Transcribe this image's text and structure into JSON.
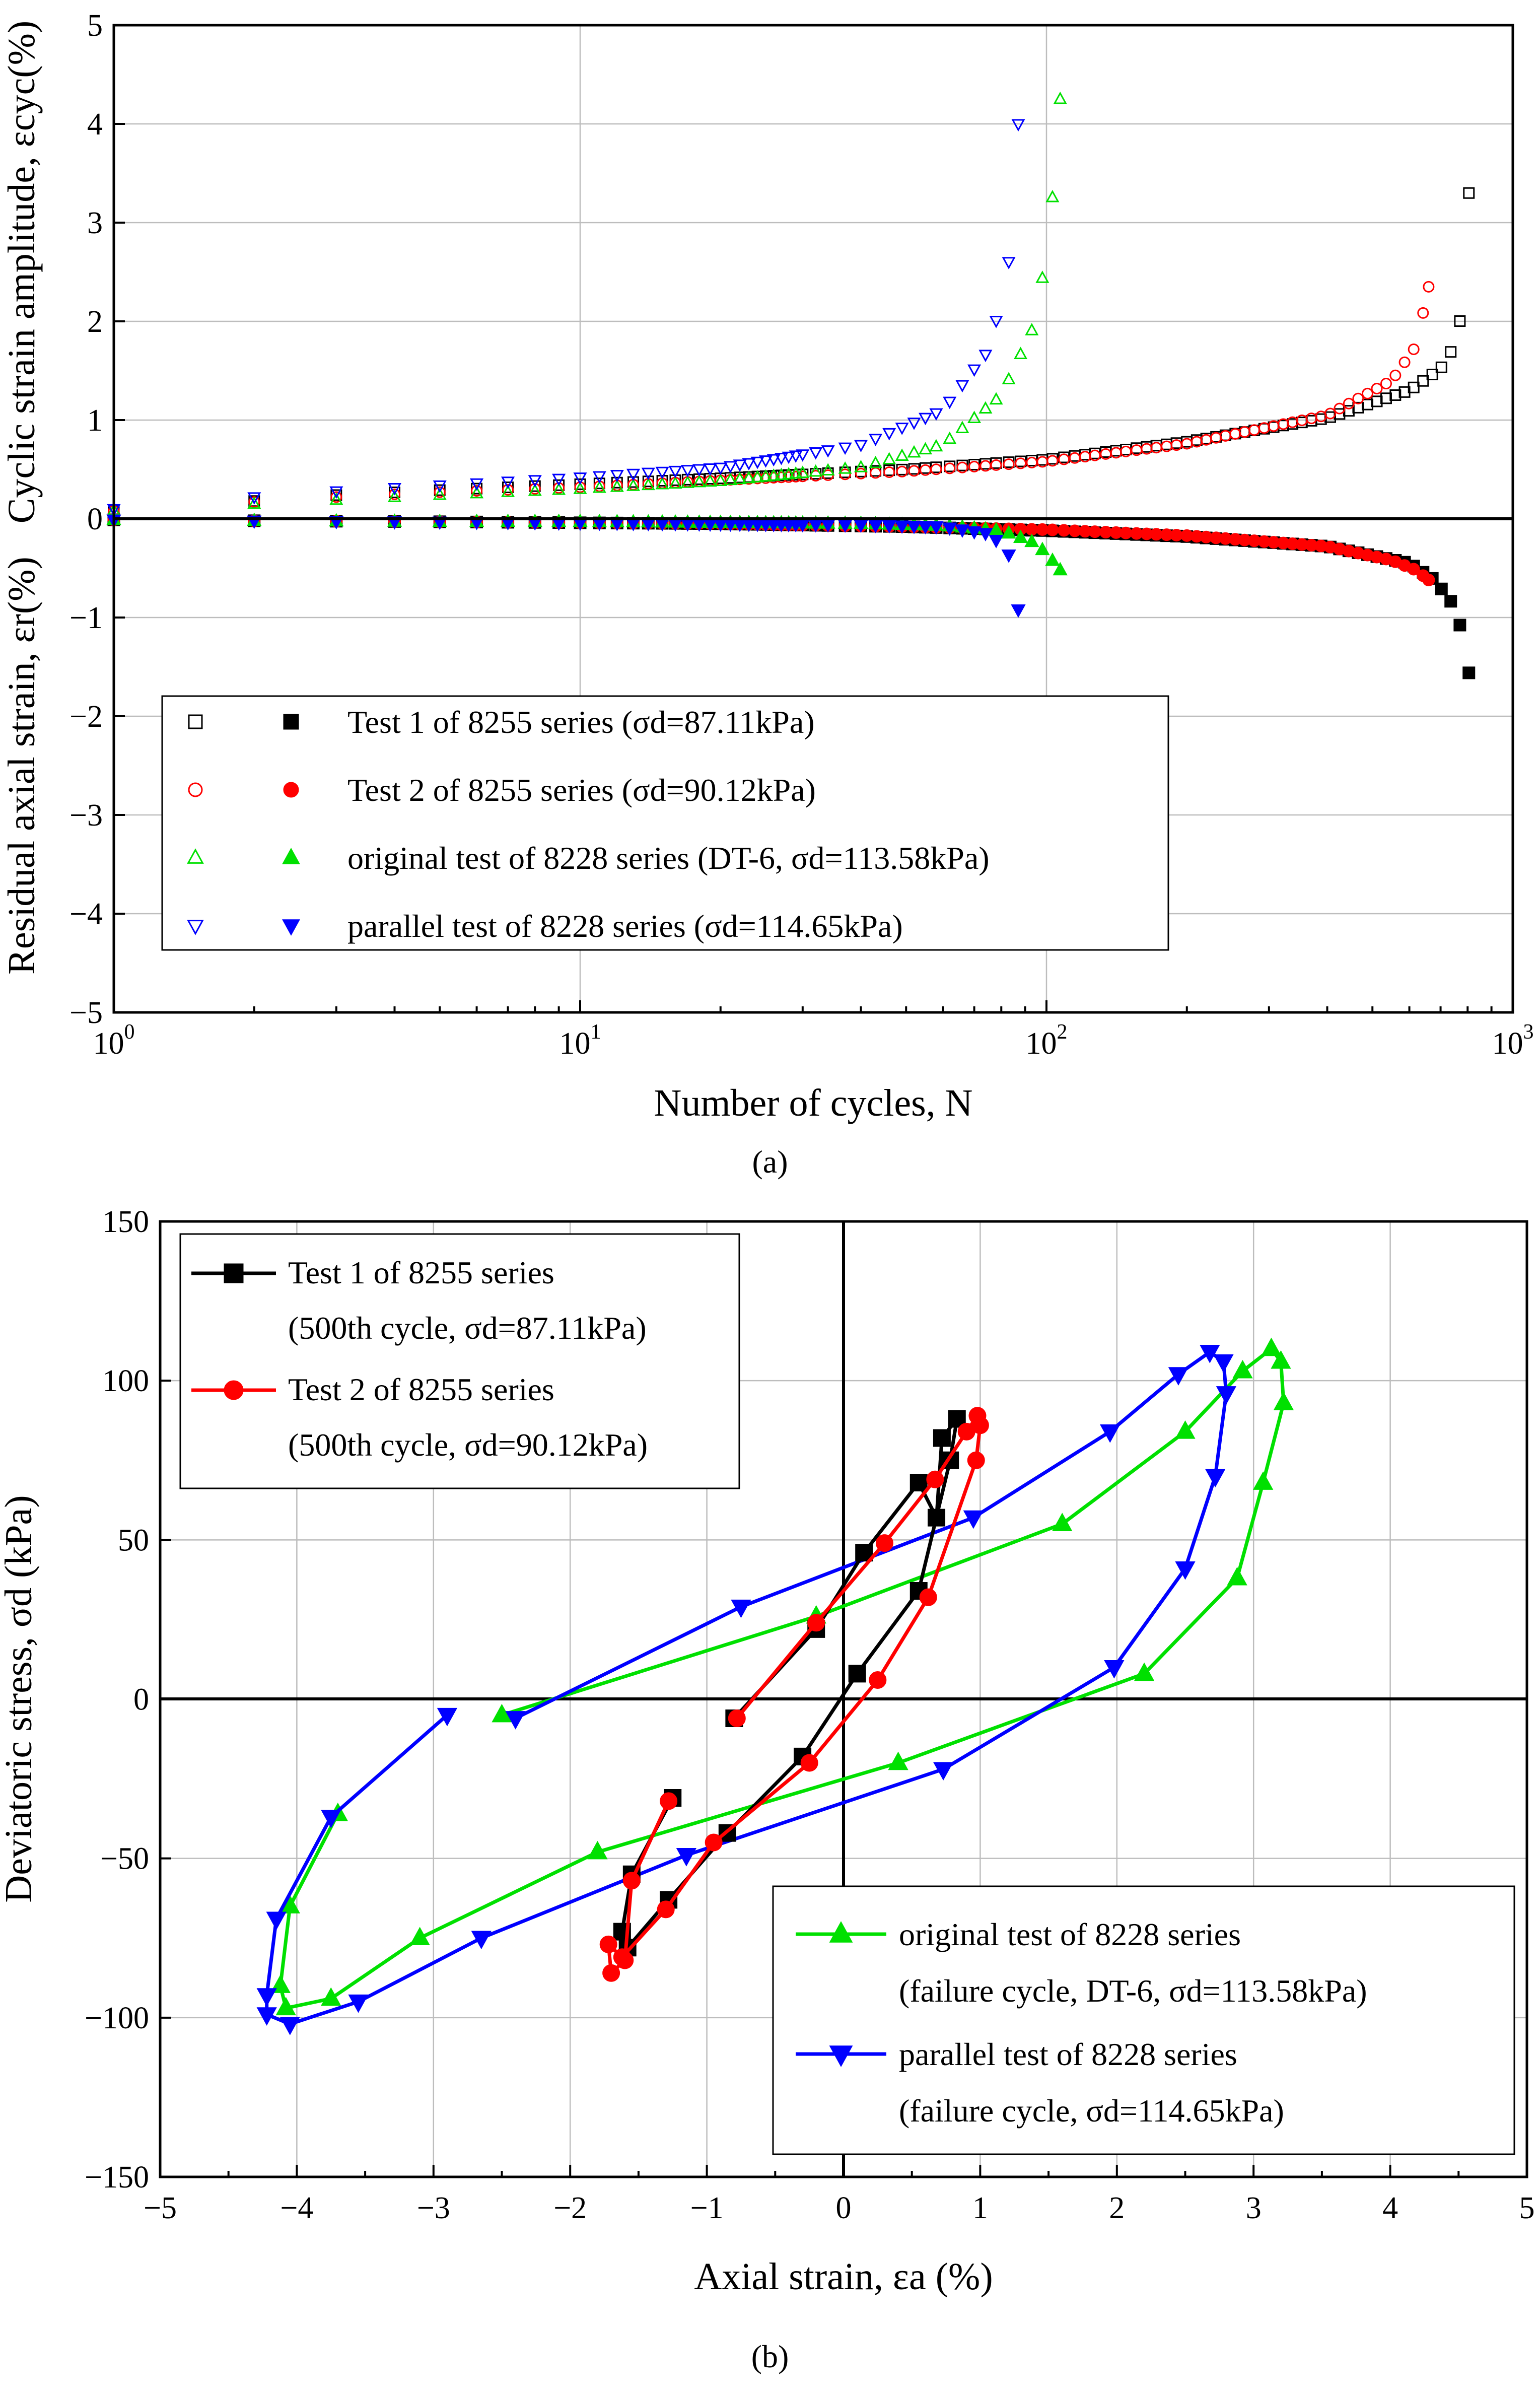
{
  "chart_data": [
    {
      "panel_label": "(a)",
      "type": "scatter",
      "xscale": "log",
      "xlim": [
        1,
        1000
      ],
      "ylim": [
        -5,
        5
      ],
      "xticks": [
        "10^0",
        "10^1",
        "10^2",
        "10^3"
      ],
      "yticks": [
        "5",
        "4",
        "3",
        "2",
        "1",
        "0",
        "−1",
        "−2",
        "−3",
        "−4",
        "−5"
      ],
      "xlabel": "Number of cycles, N",
      "ylabel_top": "Cyclic strain amplitude, εcyc(%)",
      "ylabel_bottom": "Residual axial strain, εr(%)",
      "grid": true,
      "legend_position": "bottom-left",
      "series": [
        {
          "name": "Test 1 of 8255 series (σd=87.11kPa)",
          "color": "#000000",
          "marker_open": "square",
          "marker_filled": "square",
          "N_end": 805,
          "cyclic_amplitude": [
            [
              1,
              0.08
            ],
            [
              2,
              0.18
            ],
            [
              3,
              0.24
            ],
            [
              5,
              0.29
            ],
            [
              10,
              0.35
            ],
            [
              20,
              0.41
            ],
            [
              50,
              0.5
            ],
            [
              100,
              0.6
            ],
            [
              200,
              0.78
            ],
            [
              400,
              1.02
            ],
            [
              600,
              1.3
            ],
            [
              700,
              1.52
            ],
            [
              760,
              1.8
            ],
            [
              790,
              2.4
            ],
            [
              805,
              3.3
            ]
          ],
          "residual_strain": [
            [
              1,
              -0.01
            ],
            [
              2,
              -0.02
            ],
            [
              5,
              -0.03
            ],
            [
              10,
              -0.04
            ],
            [
              20,
              -0.05
            ],
            [
              50,
              -0.08
            ],
            [
              100,
              -0.12
            ],
            [
              200,
              -0.18
            ],
            [
              400,
              -0.28
            ],
            [
              600,
              -0.45
            ],
            [
              680,
              -0.62
            ],
            [
              740,
              -0.85
            ],
            [
              780,
              -1.15
            ],
            [
              800,
              -1.45
            ],
            [
              810,
              -1.67
            ]
          ]
        },
        {
          "name": "Test 2 of 8255 series (σd=90.12kPa)",
          "color": "#ff0000",
          "marker_open": "circle",
          "marker_filled": "circle",
          "N_end": 660,
          "cyclic_amplitude": [
            [
              1,
              0.08
            ],
            [
              2,
              0.17
            ],
            [
              3,
              0.22
            ],
            [
              5,
              0.27
            ],
            [
              10,
              0.32
            ],
            [
              20,
              0.39
            ],
            [
              50,
              0.48
            ],
            [
              100,
              0.58
            ],
            [
              200,
              0.76
            ],
            [
              400,
              1.05
            ],
            [
              550,
              1.4
            ],
            [
              620,
              1.75
            ],
            [
              660,
              2.35
            ]
          ],
          "residual_strain": [
            [
              1,
              -0.01
            ],
            [
              2,
              -0.02
            ],
            [
              5,
              -0.03
            ],
            [
              10,
              -0.04
            ],
            [
              20,
              -0.05
            ],
            [
              50,
              -0.08
            ],
            [
              100,
              -0.11
            ],
            [
              200,
              -0.17
            ],
            [
              400,
              -0.28
            ],
            [
              550,
              -0.42
            ],
            [
              620,
              -0.52
            ],
            [
              660,
              -0.62
            ]
          ]
        },
        {
          "name": "original test of 8228 series (DT-6, σd=113.58kPa)",
          "color": "#00e000",
          "marker_open": "triangle-up",
          "marker_filled": "triangle-up",
          "N_end": 107,
          "cyclic_amplitude": [
            [
              1,
              0.08
            ],
            [
              2,
              0.15
            ],
            [
              3,
              0.19
            ],
            [
              5,
              0.24
            ],
            [
              10,
              0.3
            ],
            [
              20,
              0.38
            ],
            [
              40,
              0.52
            ],
            [
              60,
              0.75
            ],
            [
              80,
              1.25
            ],
            [
              95,
              2.0
            ],
            [
              102,
              3.0
            ],
            [
              107,
              4.25
            ]
          ],
          "residual_strain": [
            [
              1,
              -0.01
            ],
            [
              2,
              -0.02
            ],
            [
              5,
              -0.03
            ],
            [
              10,
              -0.03
            ],
            [
              20,
              -0.04
            ],
            [
              40,
              -0.05
            ],
            [
              60,
              -0.07
            ],
            [
              80,
              -0.12
            ],
            [
              95,
              -0.25
            ],
            [
              102,
              -0.4
            ],
            [
              107,
              -0.52
            ]
          ]
        },
        {
          "name": "parallel test of 8228 series (σd=114.65kPa)",
          "color": "#0000ff",
          "marker_open": "triangle-down",
          "marker_filled": "triangle-down",
          "N_end": 87,
          "cyclic_amplitude": [
            [
              1,
              0.1
            ],
            [
              2,
              0.22
            ],
            [
              3,
              0.28
            ],
            [
              5,
              0.34
            ],
            [
              10,
              0.42
            ],
            [
              20,
              0.52
            ],
            [
              40,
              0.75
            ],
            [
              60,
              1.1
            ],
            [
              75,
              1.7
            ],
            [
              82,
              2.4
            ],
            [
              86,
              3.2
            ],
            [
              87,
              4.0
            ]
          ],
          "residual_strain": [
            [
              1,
              -0.01
            ],
            [
              2,
              -0.02
            ],
            [
              5,
              -0.03
            ],
            [
              10,
              -0.04
            ],
            [
              20,
              -0.05
            ],
            [
              40,
              -0.06
            ],
            [
              60,
              -0.08
            ],
            [
              75,
              -0.15
            ],
            [
              82,
              -0.3
            ],
            [
              86,
              -0.55
            ],
            [
              87,
              -0.92
            ]
          ]
        }
      ]
    },
    {
      "panel_label": "(b)",
      "type": "line",
      "xlim": [
        -5,
        5
      ],
      "ylim": [
        -150,
        150
      ],
      "xticks": [
        "−5",
        "−4",
        "−3",
        "−2",
        "−1",
        "0",
        "1",
        "2",
        "3",
        "4",
        "5"
      ],
      "yticks": [
        "150",
        "100",
        "50",
        "0",
        "−50",
        "−100",
        "−150"
      ],
      "xlabel": "Axial strain, εa (%)",
      "ylabel": "Deviatoric stress, σd (kPa)",
      "grid": true,
      "legend_position": "top-left and bottom-right",
      "series": [
        {
          "name": "Test 1 of 8255 series",
          "name_line2": "(500th cycle, σd=87.11kPa)",
          "color": "#000000",
          "marker": "square",
          "x": [
            -1.25,
            -1.55,
            -1.62,
            -1.58,
            -1.28,
            -0.85,
            -0.3,
            0.1,
            0.55,
            0.78,
            0.83,
            0.72,
            0.68,
            0.55,
            0.15,
            -0.2,
            -0.8
          ],
          "y": [
            -31,
            -55,
            -73,
            -78,
            -63,
            -42,
            -18,
            8,
            34,
            75,
            88,
            82,
            57,
            68,
            46,
            22,
            -6
          ]
        },
        {
          "name": "Test 2 of 8255 series",
          "name_line2": "(500th cycle, σd=90.12kPa)",
          "color": "#ff0000",
          "marker": "circle",
          "x": [
            -1.28,
            -1.55,
            -1.6,
            -1.7,
            -1.72,
            -1.62,
            -1.3,
            -0.95,
            -0.25,
            0.25,
            0.62,
            0.97,
            1.0,
            0.98,
            0.9,
            0.67,
            0.3,
            -0.2,
            -0.78
          ],
          "y": [
            -32,
            -57,
            -82,
            -86,
            -77,
            -81,
            -66,
            -45,
            -20,
            6,
            32,
            75,
            86,
            89,
            84,
            69,
            49,
            24,
            -6
          ]
        },
        {
          "name": "original test of 8228 series",
          "name_line2": "(failure cycle, DT-6, σd=113.58kPa)",
          "color": "#00e000",
          "marker": "triangle-up",
          "x": [
            -3.7,
            -4.05,
            -4.12,
            -4.08,
            -3.75,
            -3.1,
            -1.8,
            0.4,
            2.2,
            2.88,
            3.07,
            3.22,
            3.2,
            3.13,
            2.92,
            2.5,
            1.6,
            -0.2,
            -2.5
          ],
          "y": [
            -36,
            -65,
            -90,
            -97,
            -94,
            -75,
            -48,
            -20,
            8,
            38,
            68,
            93,
            106,
            110,
            103,
            84,
            55,
            26,
            -5
          ]
        },
        {
          "name": "parallel test of 8228 series",
          "name_line2": "(failure cycle, σd=114.65kPa)",
          "color": "#0000ff",
          "marker": "triangle-down",
          "x": [
            -2.9,
            -3.75,
            -4.15,
            -4.22,
            -4.22,
            -4.05,
            -3.55,
            -2.65,
            -1.15,
            0.73,
            1.98,
            2.5,
            2.72,
            2.8,
            2.78,
            2.68,
            2.45,
            1.95,
            0.95,
            -0.75,
            -2.4
          ],
          "y": [
            -5,
            -37,
            -69,
            -93,
            -99,
            -102,
            -95,
            -75,
            -49,
            -22,
            10,
            41,
            70,
            96,
            106,
            109,
            102,
            84,
            57,
            29,
            -6
          ]
        }
      ]
    }
  ]
}
